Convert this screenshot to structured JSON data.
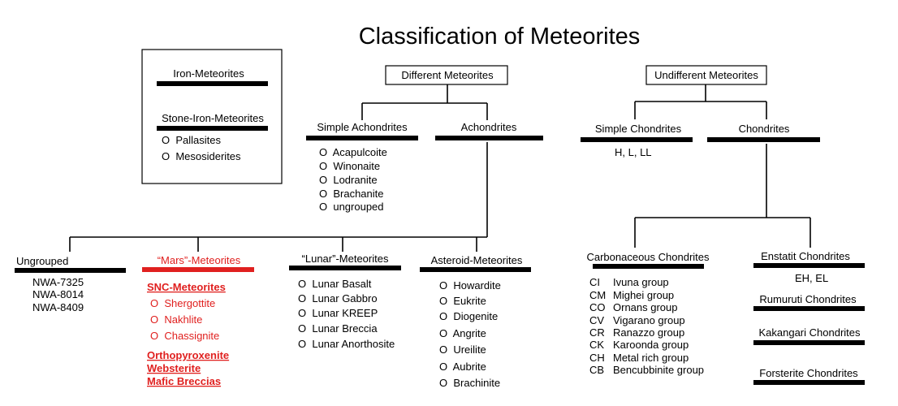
{
  "title": "Classification of Meteorites",
  "colors": {
    "text": "#000000",
    "accent": "#e0201f",
    "bar": "#000000"
  },
  "iron_box": {
    "iron_label": "Iron-Meteorites",
    "stone_iron_label": "Stone-Iron-Meteorites",
    "items": [
      "O  Pallasites",
      "O  Mesosiderites"
    ]
  },
  "different": {
    "label": "Different Meteorites",
    "simple_achondrites": {
      "label": "Simple Achondrites",
      "items": [
        "O  Acapulcoite",
        "O  Winonaite",
        "O  Lodranite",
        "O  Brachanite",
        "O  ungrouped"
      ]
    },
    "achondrites": {
      "label": "Achondrites"
    }
  },
  "undifferent": {
    "label": "Undifferent Meteorites",
    "simple_chondrites": {
      "label": "Simple Chondrites",
      "items": [
        "H, L, LL"
      ]
    },
    "chondrites": {
      "label": "Chondrites"
    }
  },
  "ungrouped": {
    "label": "Ungrouped",
    "items": [
      "NWA-7325",
      "NWA-8014",
      "NWA-8409"
    ]
  },
  "mars": {
    "label": "“Mars”-Meteorites",
    "snc_label": "SNC-Meteorites",
    "snc_items": [
      "O  Shergottite",
      "O  Nakhlite",
      "O  Chassignite"
    ],
    "extra_items": [
      "Orthopyroxenite",
      "Websterite",
      "Mafic Breccias"
    ]
  },
  "lunar": {
    "label": "“Lunar”-Meteorites",
    "items": [
      "O  Lunar Basalt",
      "O  Lunar Gabbro",
      "O  Lunar KREEP",
      "O  Lunar Breccia",
      "O  Lunar Anorthosite"
    ]
  },
  "asteroid": {
    "label": "Asteroid-Meteorites",
    "items": [
      "O  Howardite",
      "O  Eukrite",
      "O  Diogenite",
      "O  Angrite",
      "O  Ureilite",
      "O  Aubrite",
      "O  Brachinite"
    ]
  },
  "carbonaceous": {
    "label": "Carbonaceous Chondrites",
    "codes": [
      "CI",
      "CM",
      "CO",
      "CV",
      "CR",
      "CK",
      "CH",
      "CB"
    ],
    "groups": [
      "Ivuna group",
      "Mighei group",
      "Ornans group",
      "Vigarano group",
      "Ranazzo group",
      "Karoonda group",
      "Metal rich group",
      "Bencubbinite group"
    ]
  },
  "enstatit": {
    "label": "Enstatit Chondrites",
    "items": [
      "EH, EL"
    ]
  },
  "rumuruti": {
    "label": "Rumuruti Chondrites"
  },
  "kakangari": {
    "label": "Kakangari Chondrites"
  },
  "forsterite": {
    "label": "Forsterite Chondrites"
  }
}
